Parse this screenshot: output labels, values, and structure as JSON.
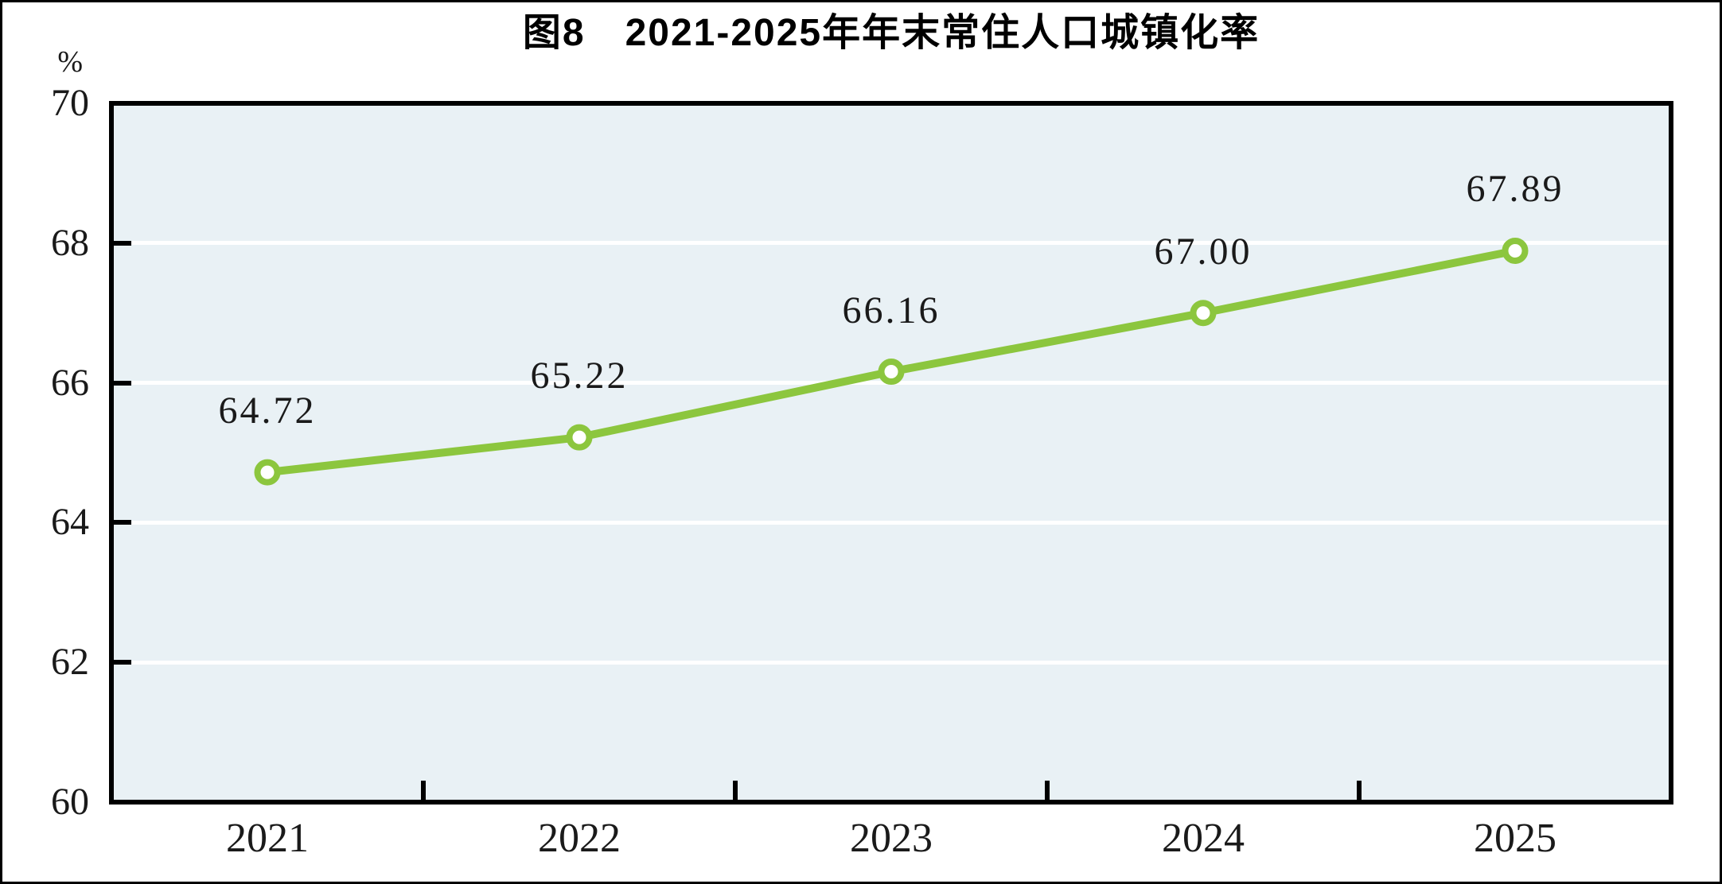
{
  "figure": {
    "title": "图8　2021-2025年年末常住人口城镇化率",
    "unit_label": "%"
  },
  "chart_data": {
    "type": "line",
    "title": "图8　2021-2025年年末常住人口城镇化率",
    "xlabel": "",
    "ylabel": "%",
    "categories": [
      "2021",
      "2022",
      "2023",
      "2024",
      "2025"
    ],
    "values": [
      64.72,
      65.22,
      66.16,
      67.0,
      67.89
    ],
    "value_labels": [
      "64.72",
      "65.22",
      "66.16",
      "67.00",
      "67.89"
    ],
    "ylim": [
      60,
      70
    ],
    "yticks": [
      60,
      62,
      64,
      66,
      68,
      70
    ],
    "grid": "horizontal",
    "legend": "none",
    "colors": {
      "line": "#8CC63E",
      "marker_fill": "#FFFFFF",
      "plot_background": "#E9F1F5",
      "gridline": "#FFFFFF",
      "axis_frame": "#000000",
      "text": "#1A1A1A"
    }
  }
}
